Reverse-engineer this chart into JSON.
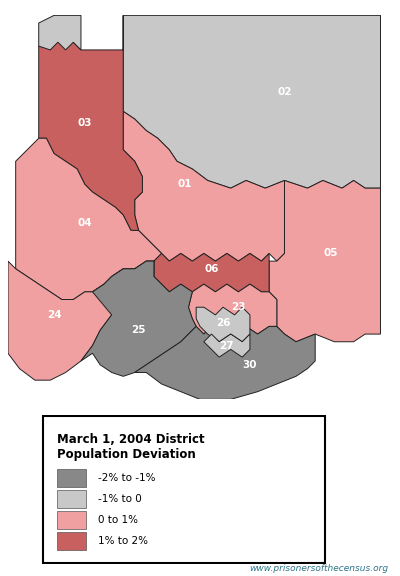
{
  "title": "March 1, 2004 District\nPopulation Deviation",
  "website": "www.prisonersofthecensus.org",
  "website_color": "#2e748a",
  "colors": {
    "dark_gray": "#888888",
    "light_gray": "#c8c8c8",
    "light_pink": "#f0a0a0",
    "dark_pink": "#c86060"
  },
  "legend": [
    {
      "label": "-2% to -1%",
      "color": "#888888"
    },
    {
      "label": "-1% to 0",
      "color": "#c8c8c8"
    },
    {
      "label": "0 to 1%",
      "color": "#f0a0a0"
    },
    {
      "label": "1% to 2%",
      "color": "#c86060"
    }
  ],
  "background_color": "white",
  "border_color": "#222222"
}
